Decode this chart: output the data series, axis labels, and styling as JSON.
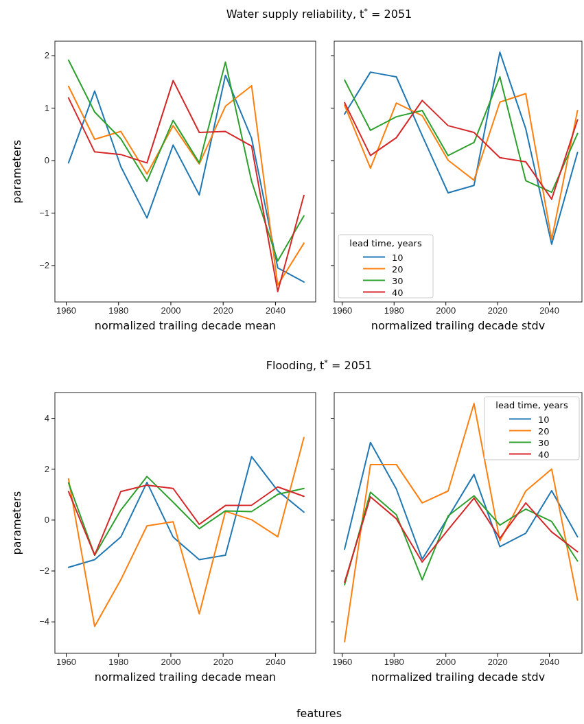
{
  "chart_data": [
    {
      "type": "line",
      "title": "Water supply reliability, t$^{*}$ = 2051",
      "xlabel": "normalized trailing decade mean",
      "ylabel": "parameters",
      "x": [
        1961,
        1971,
        1981,
        1991,
        2001,
        2011,
        2021,
        2031,
        2041,
        2051
      ],
      "xlim": [
        1955.8,
        2055.5
      ],
      "xticks": [
        1960,
        1980,
        2000,
        2020,
        2040
      ],
      "ylim": [
        -2.7,
        2.27
      ],
      "yticks": [
        -2,
        -1,
        0,
        1,
        2
      ],
      "legend": false,
      "series": [
        {
          "color": "#1f77b4",
          "values": [
            -0.05,
            1.32,
            -0.12,
            -1.1,
            0.29,
            -0.66,
            1.62,
            0.42,
            -2.05,
            -2.32
          ]
        },
        {
          "color": "#ff7f0e",
          "values": [
            1.41,
            0.4,
            0.55,
            -0.26,
            0.66,
            -0.07,
            1.03,
            1.42,
            -2.38,
            -1.58
          ]
        },
        {
          "color": "#2ca02c",
          "values": [
            1.91,
            0.92,
            0.41,
            -0.4,
            0.76,
            -0.05,
            1.87,
            -0.4,
            -1.92,
            -1.06
          ]
        },
        {
          "color": "#d62728",
          "values": [
            1.19,
            0.16,
            0.11,
            -0.05,
            1.52,
            0.53,
            0.55,
            0.27,
            -2.5,
            -0.67
          ]
        }
      ]
    },
    {
      "type": "line",
      "xlabel": "normalized trailing decade stdv",
      "legend_title": "lead time, years",
      "x": [
        1961,
        1971,
        1981,
        1991,
        2001,
        2011,
        2021,
        2031,
        2041,
        2051
      ],
      "xlim": [
        1957,
        2052.7
      ],
      "xticks": [
        1960,
        1980,
        2000,
        2020,
        2040
      ],
      "ylim": [
        -2.7,
        2.27
      ],
      "yticks": [
        -2,
        -1,
        0,
        1,
        2
      ],
      "tick_labels": "x",
      "legend": "bottom left",
      "series": [
        {
          "name": "10",
          "color": "#1f77b4",
          "values": [
            0.88,
            1.68,
            1.59,
            0.47,
            -0.62,
            -0.48,
            2.06,
            0.6,
            -1.6,
            0.15
          ]
        },
        {
          "name": "20",
          "color": "#ff7f0e",
          "values": [
            1.05,
            -0.15,
            1.09,
            0.85,
            0.0,
            -0.38,
            1.11,
            1.27,
            -1.51,
            0.95
          ]
        },
        {
          "name": "30",
          "color": "#2ca02c",
          "values": [
            1.53,
            0.57,
            0.83,
            0.95,
            0.09,
            0.34,
            1.59,
            -0.39,
            -0.61,
            0.51
          ]
        },
        {
          "name": "40",
          "color": "#d62728",
          "values": [
            1.1,
            0.09,
            0.43,
            1.14,
            0.66,
            0.53,
            0.05,
            -0.03,
            -0.74,
            0.77
          ]
        }
      ]
    },
    {
      "type": "line",
      "title": "Flooding, t$^{*}$ = 2051",
      "xlabel": "normalized trailing decade mean",
      "ylabel": "parameters",
      "annotations": [
        "features"
      ],
      "x": [
        1961,
        1971,
        1981,
        1991,
        2001,
        2011,
        2021,
        2031,
        2041,
        2051
      ],
      "xlim": [
        1955.8,
        2055.5
      ],
      "xticks": [
        1960,
        1980,
        2000,
        2020,
        2040
      ],
      "ylim": [
        -5.25,
        5.0
      ],
      "yticks": [
        -4,
        -2,
        0,
        2,
        4
      ],
      "legend": false,
      "series": [
        {
          "color": "#1f77b4",
          "values": [
            -1.87,
            -1.57,
            -0.68,
            1.47,
            -0.68,
            -1.57,
            -1.39,
            2.48,
            1.14,
            0.3
          ]
        },
        {
          "color": "#ff7f0e",
          "values": [
            1.61,
            -4.19,
            -2.36,
            -0.24,
            -0.08,
            -3.7,
            0.33,
            0.0,
            -0.67,
            3.23
          ]
        },
        {
          "color": "#2ca02c",
          "values": [
            1.45,
            -1.39,
            0.38,
            1.7,
            0.69,
            -0.35,
            0.35,
            0.32,
            1.0,
            1.23
          ]
        },
        {
          "color": "#d62728",
          "values": [
            1.11,
            -1.39,
            1.11,
            1.36,
            1.23,
            -0.18,
            0.56,
            0.57,
            1.29,
            0.92
          ]
        }
      ]
    },
    {
      "type": "line",
      "xlabel": "normalized trailing decade stdv",
      "legend_title": "lead time, years",
      "x": [
        1961,
        1971,
        1981,
        1991,
        2001,
        2011,
        2021,
        2031,
        2041,
        2051
      ],
      "xlim": [
        1957,
        2052.7
      ],
      "xticks": [
        1960,
        1980,
        2000,
        2020,
        2040
      ],
      "ylim": [
        -5.25,
        5.0
      ],
      "yticks": [
        -4,
        -2,
        0,
        2,
        4
      ],
      "tick_labels": "x",
      "legend": "top right",
      "series": [
        {
          "name": "10",
          "color": "#1f77b4",
          "values": [
            -1.16,
            3.04,
            1.21,
            -1.55,
            0.1,
            1.78,
            -1.06,
            -0.53,
            1.14,
            -0.67
          ]
        },
        {
          "name": "20",
          "color": "#ff7f0e",
          "values": [
            -4.8,
            2.17,
            2.17,
            0.66,
            1.13,
            4.57,
            -0.83,
            1.13,
            1.99,
            -3.16
          ]
        },
        {
          "name": "30",
          "color": "#2ca02c",
          "values": [
            -2.56,
            1.08,
            0.2,
            -2.36,
            0.15,
            0.94,
            -0.21,
            0.42,
            -0.07,
            -1.62
          ]
        },
        {
          "name": "40",
          "color": "#d62728",
          "values": [
            -2.46,
            0.9,
            0.04,
            -1.66,
            -0.39,
            0.85,
            -0.73,
            0.66,
            -0.48,
            -1.26
          ]
        }
      ]
    }
  ]
}
